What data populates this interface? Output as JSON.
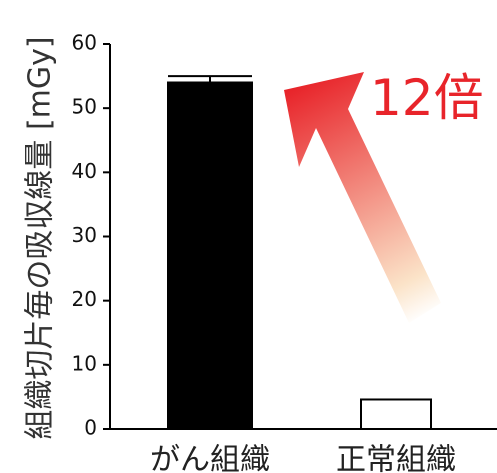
{
  "chart_data": {
    "type": "bar",
    "categories": [
      "がん組織",
      "正常組織"
    ],
    "values": [
      54,
      4.6
    ],
    "error": [
      1.0,
      0
    ],
    "bar_colors": [
      "#000000",
      "#ffffff"
    ],
    "ylabel": "組織切片毎の吸収線量 [mGy]",
    "xlabel": "",
    "title": "",
    "ylim": [
      0,
      60
    ],
    "yticks": [
      0,
      10,
      20,
      30,
      40,
      50,
      60
    ],
    "grid": false,
    "annotation": {
      "text": "12倍",
      "color": "#e8242a",
      "arrow_colors": [
        "#ffffff",
        "#e8242a"
      ]
    }
  }
}
